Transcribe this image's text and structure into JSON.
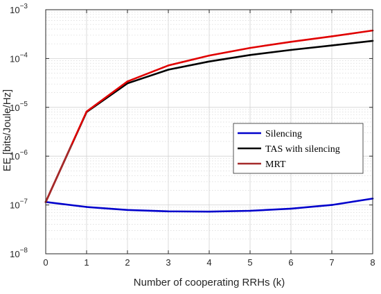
{
  "chart_data": {
    "type": "line",
    "title": "",
    "xlabel": "Number of cooperating RRHs (k)",
    "ylabel": "EE [bits/Joule/Hz]",
    "xlim": [
      0,
      8
    ],
    "ylim": [
      1e-08,
      0.001
    ],
    "yscale": "log",
    "grid": true,
    "minor_grid": true,
    "x_ticks": [
      "0",
      "1",
      "2",
      "3",
      "4",
      "5",
      "6",
      "7",
      "8"
    ],
    "y_ticks": [
      {
        "value": 1e-08,
        "base": "10",
        "exp": "−8"
      },
      {
        "value": 1e-07,
        "base": "10",
        "exp": "−7"
      },
      {
        "value": 1e-06,
        "base": "10",
        "exp": "−6"
      },
      {
        "value": 1e-05,
        "base": "10",
        "exp": "−5"
      },
      {
        "value": 0.0001,
        "base": "10",
        "exp": "−4"
      },
      {
        "value": 0.001,
        "base": "10",
        "exp": "−3"
      }
    ],
    "legend_position": "center-right",
    "series": [
      {
        "name": "Silencing",
        "color": "#0000cc",
        "x": [
          0,
          1,
          2,
          3,
          4,
          5,
          6,
          7,
          8
        ],
        "y": [
          1.15e-07,
          9.1e-08,
          7.9e-08,
          7.4e-08,
          7.3e-08,
          7.6e-08,
          8.4e-08,
          1e-07,
          1.35e-07
        ]
      },
      {
        "name": "TAS with silencing",
        "color": "#000000",
        "x": [
          0,
          1,
          2,
          3,
          4,
          5,
          6,
          7,
          8
        ],
        "y": [
          1.15e-07,
          8e-06,
          3.1e-05,
          5.9e-05,
          8.7e-05,
          0.000118,
          0.00015,
          0.000185,
          0.00023
        ]
      },
      {
        "name": "MRT",
        "color": "#e00000",
        "legend_color": "#a52a2a",
        "x": [
          0,
          1,
          2,
          3,
          4,
          5,
          6,
          7,
          8
        ],
        "y": [
          1.15e-07,
          8.2e-06,
          3.4e-05,
          7.2e-05,
          0.000115,
          0.000165,
          0.00022,
          0.000285,
          0.000375
        ]
      }
    ]
  }
}
